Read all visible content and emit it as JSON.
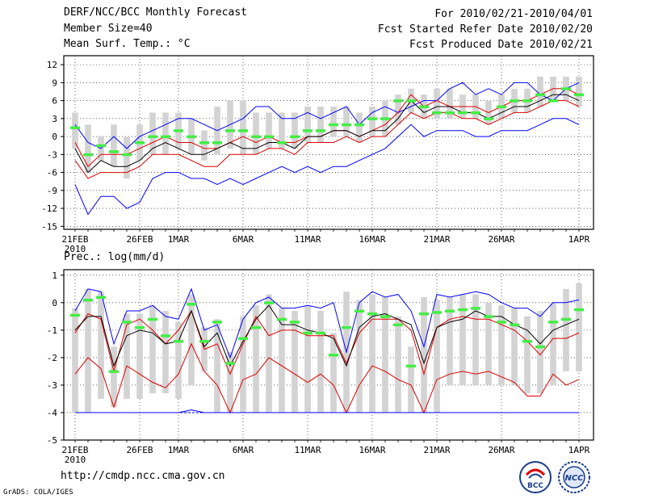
{
  "header": {
    "title": "DERF/NCC/BCC Monthly Forecast",
    "member_size": "Member Size=40",
    "variable1": "Mean Surf. Temp.: °C",
    "period": "For 2010/02/21-2010/04/01",
    "started": "Fcst Started Refer Date 2010/02/20",
    "produced": "Fcst Produced Date 2010/02/21"
  },
  "footer": {
    "url": "http://cmdp.ncc.cma.gov.cn",
    "credit": "GrADS: COLA/IGES",
    "logo1_text": "BCC",
    "logo2_text": "NCC"
  },
  "colors": {
    "max_min": "#0000ff",
    "spread": "#dd0000",
    "mean": "#000000",
    "median": "#44ee44",
    "box": "#d3d3d3",
    "baseline": "#0000ff"
  },
  "chart_data": [
    {
      "type": "line",
      "title": "Mean Surf. Temp.: °C",
      "x_start_label": "21FEB",
      "x_year": "2010",
      "categories": [
        "21FEB",
        "22FEB",
        "23FEB",
        "24FEB",
        "25FEB",
        "26FEB",
        "27FEB",
        "28FEB",
        "1MAR",
        "2MAR",
        "3MAR",
        "4MAR",
        "5MAR",
        "6MAR",
        "7MAR",
        "8MAR",
        "9MAR",
        "10MAR",
        "11MAR",
        "12MAR",
        "13MAR",
        "14MAR",
        "15MAR",
        "16MAR",
        "17MAR",
        "18MAR",
        "19MAR",
        "20MAR",
        "21MAR",
        "22MAR",
        "23MAR",
        "24MAR",
        "25MAR",
        "26MAR",
        "27MAR",
        "28MAR",
        "29MAR",
        "30MAR",
        "31MAR",
        "1APR"
      ],
      "xticks": [
        {
          "index": 0,
          "label": "21FEB"
        },
        {
          "index": 5,
          "label": "26FEB"
        },
        {
          "index": 8,
          "label": "1MAR"
        },
        {
          "index": 13,
          "label": "6MAR"
        },
        {
          "index": 18,
          "label": "11MAR"
        },
        {
          "index": 23,
          "label": "16MAR"
        },
        {
          "index": 28,
          "label": "21MAR"
        },
        {
          "index": 33,
          "label": "26MAR"
        },
        {
          "index": 39,
          "label": "1APR"
        }
      ],
      "ylim": [
        -15.5,
        13.5
      ],
      "yticks": [
        -15,
        -12,
        -9,
        -6,
        -3,
        0,
        3,
        6,
        9,
        12
      ],
      "series": [
        {
          "name": "max",
          "color": "#0000ff",
          "values": [
            2,
            -1,
            -2,
            0,
            -2,
            0,
            1,
            2,
            3,
            3,
            2,
            1,
            2,
            3,
            5,
            5,
            3,
            3,
            4,
            3,
            4,
            5,
            2,
            4,
            5,
            4,
            5,
            6,
            6,
            8,
            9,
            7,
            8,
            7,
            9,
            9,
            7,
            6,
            8,
            9
          ]
        },
        {
          "name": "upper",
          "color": "#dd0000",
          "values": [
            -1,
            -5,
            -3,
            -3,
            -3,
            -2,
            -1,
            0,
            -1,
            -1,
            -2,
            -2,
            -1,
            0,
            -1,
            0,
            -1,
            -1,
            0,
            0,
            1,
            1,
            0,
            1,
            2,
            4,
            7,
            5,
            6,
            5,
            5,
            5,
            4,
            5,
            6,
            6,
            7,
            8,
            8,
            7
          ]
        },
        {
          "name": "mean",
          "color": "#000000",
          "values": [
            -2,
            -6,
            -4,
            -5,
            -5,
            -4,
            -2,
            -1,
            -2,
            -3,
            -3,
            -2,
            -1,
            -2,
            -2,
            -1,
            -1,
            -2,
            0,
            0,
            1,
            1,
            0,
            1,
            1,
            3,
            6,
            4,
            5,
            5,
            4,
            4,
            3,
            4,
            5,
            5,
            6,
            7,
            7,
            6
          ]
        },
        {
          "name": "lower",
          "color": "#dd0000",
          "values": [
            -4,
            -7,
            -6,
            -6,
            -6,
            -5,
            -3,
            -3,
            -3,
            -4,
            -5,
            -5,
            -3,
            -3,
            -3,
            -2,
            -2,
            -3,
            -1,
            -1,
            -1,
            0,
            -1,
            0,
            0,
            2,
            4,
            3,
            4,
            4,
            3,
            3,
            2,
            3,
            4,
            4,
            5,
            6,
            6,
            5
          ]
        },
        {
          "name": "min",
          "color": "#0000ff",
          "values": [
            -8,
            -13,
            -10,
            -10,
            -12,
            -11,
            -7,
            -6,
            -6,
            -7,
            -7,
            -8,
            -7,
            -8,
            -7,
            -6,
            -5,
            -6,
            -5,
            -6,
            -5,
            -5,
            -4,
            -3,
            -2,
            0,
            2,
            0,
            1,
            1,
            1,
            0,
            0,
            1,
            1,
            1,
            2,
            3,
            3,
            2
          ]
        },
        {
          "name": "median",
          "color": "#44ee44",
          "values": [
            1.5,
            -3,
            -1.5,
            -2.5,
            -3,
            -1,
            0,
            0,
            1,
            0,
            -1,
            -1,
            1,
            1,
            0,
            0,
            -1,
            0,
            1,
            1,
            2,
            2,
            2,
            3,
            3,
            6,
            6,
            5,
            4,
            4,
            4,
            4,
            3,
            5,
            6,
            6,
            7,
            6,
            8,
            7
          ]
        }
      ],
      "box": {
        "upper": [
          4,
          2,
          0,
          2,
          0,
          2,
          4,
          4,
          4,
          3,
          1,
          5,
          6,
          6,
          4,
          4,
          4,
          4,
          5,
          5,
          5,
          5,
          4,
          5,
          6,
          7,
          8,
          7,
          8,
          8,
          7,
          7,
          6,
          7,
          8,
          8,
          10,
          10,
          10,
          10
        ],
        "lower": [
          -2,
          -6,
          -4,
          -5,
          -7,
          -4,
          -3,
          -3,
          -2,
          -3,
          -4,
          -3,
          -2,
          -3,
          -3,
          -2,
          -2,
          -2,
          -1,
          -1,
          0,
          0,
          -1,
          0,
          0,
          2,
          4,
          3,
          3,
          3,
          3,
          3,
          2,
          3,
          4,
          4,
          5,
          6,
          6,
          5
        ]
      }
    },
    {
      "type": "line",
      "title": "Prec.: log(mm/d)",
      "x_start_label": "21FEB",
      "x_year": "2010",
      "xticks": [
        {
          "index": 0,
          "label": "21FEB"
        },
        {
          "index": 5,
          "label": "26FEB"
        },
        {
          "index": 8,
          "label": "1MAR"
        },
        {
          "index": 13,
          "label": "6MAR"
        },
        {
          "index": 18,
          "label": "11MAR"
        },
        {
          "index": 23,
          "label": "16MAR"
        },
        {
          "index": 28,
          "label": "21MAR"
        },
        {
          "index": 33,
          "label": "26MAR"
        },
        {
          "index": 39,
          "label": "1APR"
        }
      ],
      "ylim": [
        -5,
        1.2
      ],
      "yticks": [
        -5,
        -4,
        -3,
        -2,
        -1,
        0,
        1
      ],
      "series": [
        {
          "name": "max",
          "color": "#0000ff",
          "values": [
            -0.3,
            0.5,
            0.4,
            -1.5,
            -0.3,
            -0.3,
            -0.1,
            -0.5,
            -0.6,
            0.5,
            -1.0,
            -0.8,
            -2.0,
            -0.6,
            0.0,
            0.2,
            -0.2,
            -0.2,
            -0.1,
            -0.2,
            0.0,
            -1.8,
            0.0,
            0.4,
            0.2,
            0.3,
            -0.3,
            -1.6,
            0.3,
            0.2,
            0.3,
            0.4,
            0.3,
            0.0,
            -0.2,
            -0.2,
            -0.5,
            0.0,
            0.0,
            0.1
          ]
        },
        {
          "name": "upper",
          "color": "#dd0000",
          "values": [
            -1.1,
            -0.4,
            -0.6,
            -2.5,
            -0.8,
            -0.6,
            -1.0,
            -1.5,
            -1.0,
            -0.3,
            -1.7,
            -1.5,
            -2.6,
            -1.5,
            -0.5,
            -1.2,
            -1.0,
            -1.0,
            -1.2,
            -1.2,
            -1.2,
            -2.2,
            -1.1,
            -0.6,
            -0.6,
            -0.6,
            -1.0,
            -2.6,
            -0.9,
            -0.6,
            -0.5,
            -0.6,
            -0.6,
            -0.8,
            -1.0,
            -1.4,
            -1.9,
            -1.3,
            -1.3,
            -1.1
          ]
        },
        {
          "name": "mean",
          "color": "#000000",
          "values": [
            -1.0,
            -0.5,
            -0.5,
            -2.3,
            -1.2,
            -1.0,
            -1.1,
            -1.5,
            -1.4,
            -0.3,
            -1.6,
            -1.1,
            -2.3,
            -1.4,
            -0.6,
            -0.1,
            -0.8,
            -0.8,
            -1.0,
            -1.1,
            -1.3,
            -2.3,
            -0.9,
            -0.5,
            -0.4,
            -0.6,
            -0.8,
            -2.2,
            -0.9,
            -0.7,
            -0.6,
            -0.3,
            -0.5,
            -0.5,
            -0.8,
            -1.0,
            -1.5,
            -1.0,
            -0.8,
            -0.6
          ]
        },
        {
          "name": "lower",
          "color": "#dd0000",
          "values": [
            -2.6,
            -2.0,
            -2.4,
            -3.8,
            -2.3,
            -2.6,
            -2.9,
            -3.1,
            -2.6,
            -1.5,
            -2.5,
            -3.0,
            -4.0,
            -2.8,
            -2.6,
            -2.0,
            -2.3,
            -2.6,
            -2.9,
            -2.6,
            -3.0,
            -4.0,
            -3.0,
            -2.3,
            -2.5,
            -2.8,
            -3.0,
            -4.0,
            -2.8,
            -2.6,
            -2.5,
            -2.6,
            -2.5,
            -2.7,
            -2.9,
            -3.4,
            -3.4,
            -2.6,
            -3.0,
            -2.8
          ]
        },
        {
          "name": "min",
          "color": "#0000ff",
          "values": [
            -4,
            -4,
            -4,
            -4,
            -4,
            -4,
            -4,
            -4,
            -4,
            -3.9,
            -4,
            -4,
            -4,
            -4,
            -4,
            -4,
            -4,
            -4,
            -4,
            -4,
            -4,
            -4,
            -4,
            -4,
            -4,
            -4,
            -4,
            -4,
            -4,
            -4,
            -4,
            -4,
            -4,
            -4,
            -4,
            -4,
            -4,
            -4,
            -4,
            -4
          ]
        },
        {
          "name": "median",
          "color": "#44ee44",
          "values": [
            -0.45,
            0.1,
            0.2,
            -2.5,
            -0.7,
            -0.9,
            -0.6,
            -1.2,
            -1.4,
            -0.05,
            -1.4,
            -0.7,
            -2.2,
            -1.3,
            -0.9,
            0.0,
            -0.6,
            -0.7,
            -1.1,
            -1.1,
            -1.9,
            -0.9,
            -0.3,
            -0.4,
            -0.5,
            -0.8,
            -2.3,
            -0.4,
            -0.35,
            -0.3,
            -0.25,
            -0.2,
            -0.5,
            -0.7,
            -0.8,
            -1.4,
            -1.6,
            -0.7,
            -0.6,
            -0.25
          ]
        },
        {
          "name": "baseline",
          "color": "#0000ff",
          "values": [
            -4,
            -4
          ]
        }
      ],
      "box": {
        "upper": [
          -0.2,
          0.5,
          0.4,
          -1.6,
          -0.4,
          -0.4,
          -0.1,
          -0.3,
          -0.7,
          0.3,
          -0.9,
          -0.6,
          -1.8,
          -0.5,
          -0.1,
          0.3,
          -0.2,
          -0.3,
          -0.1,
          -0.3,
          -1.1,
          0.4,
          0.1,
          0.3,
          0.2,
          -0.5,
          -1.6,
          0.2,
          0.1,
          0.2,
          0.3,
          0.3,
          0.0,
          -0.1,
          -0.2,
          -0.5,
          -0.3,
          0.0,
          0.5,
          0.7
        ],
        "lower": [
          -4,
          -4,
          -3.5,
          -3.8,
          -3.5,
          -3.5,
          -3.3,
          -3.3,
          -3.5,
          -3.0,
          -2.5,
          -4,
          -4,
          -4,
          -4,
          -4,
          -4,
          -4,
          -4,
          -4,
          -4,
          -4,
          -4,
          -4,
          -4,
          -4,
          -4,
          -4,
          -4,
          -3,
          -3,
          -3,
          -3,
          -3,
          -3,
          -3.3,
          -3.3,
          -3,
          -2.5,
          -2.5
        ]
      }
    }
  ]
}
